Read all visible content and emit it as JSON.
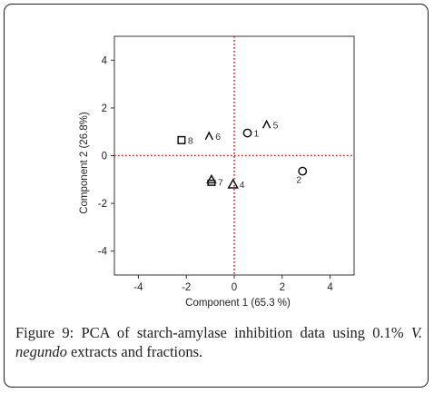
{
  "figure": {
    "caption_label": "Figure 9:",
    "caption_text_1": "PCA of starch-amylase inhibition data using 0.1%",
    "caption_species_1": "V.",
    "caption_species_2": "negundo",
    "caption_text_2": "extracts and fractions."
  },
  "chart_data": {
    "type": "scatter",
    "xlabel": "Component 1  (65.3 %)",
    "ylabel": "Component 2  (26.8%)",
    "xlim": [
      -5,
      5
    ],
    "ylim": [
      -5,
      5
    ],
    "x_ticks": [
      -4,
      -2,
      0,
      2,
      4
    ],
    "y_ticks": [
      -4,
      -2,
      0,
      2,
      4
    ],
    "reference_lines": {
      "x": 0,
      "y": 0,
      "color": "#e31a1c",
      "style": "dotted"
    },
    "points": [
      {
        "label": "1",
        "x": 0.55,
        "y": 0.95,
        "marker": "circle"
      },
      {
        "label": "2",
        "x": 2.85,
        "y": -0.65,
        "marker": "circle"
      },
      {
        "label": "4",
        "x": -0.05,
        "y": -1.2,
        "marker": "triangle"
      },
      {
        "label": "5",
        "x": 1.35,
        "y": 1.3,
        "marker": "chevron"
      },
      {
        "label": "6",
        "x": -1.05,
        "y": 0.82,
        "marker": "chevron"
      },
      {
        "label": "7",
        "x": -0.95,
        "y": -1.1,
        "marker": "square-triangle"
      },
      {
        "label": "8",
        "x": -2.2,
        "y": 0.65,
        "marker": "square"
      }
    ]
  }
}
